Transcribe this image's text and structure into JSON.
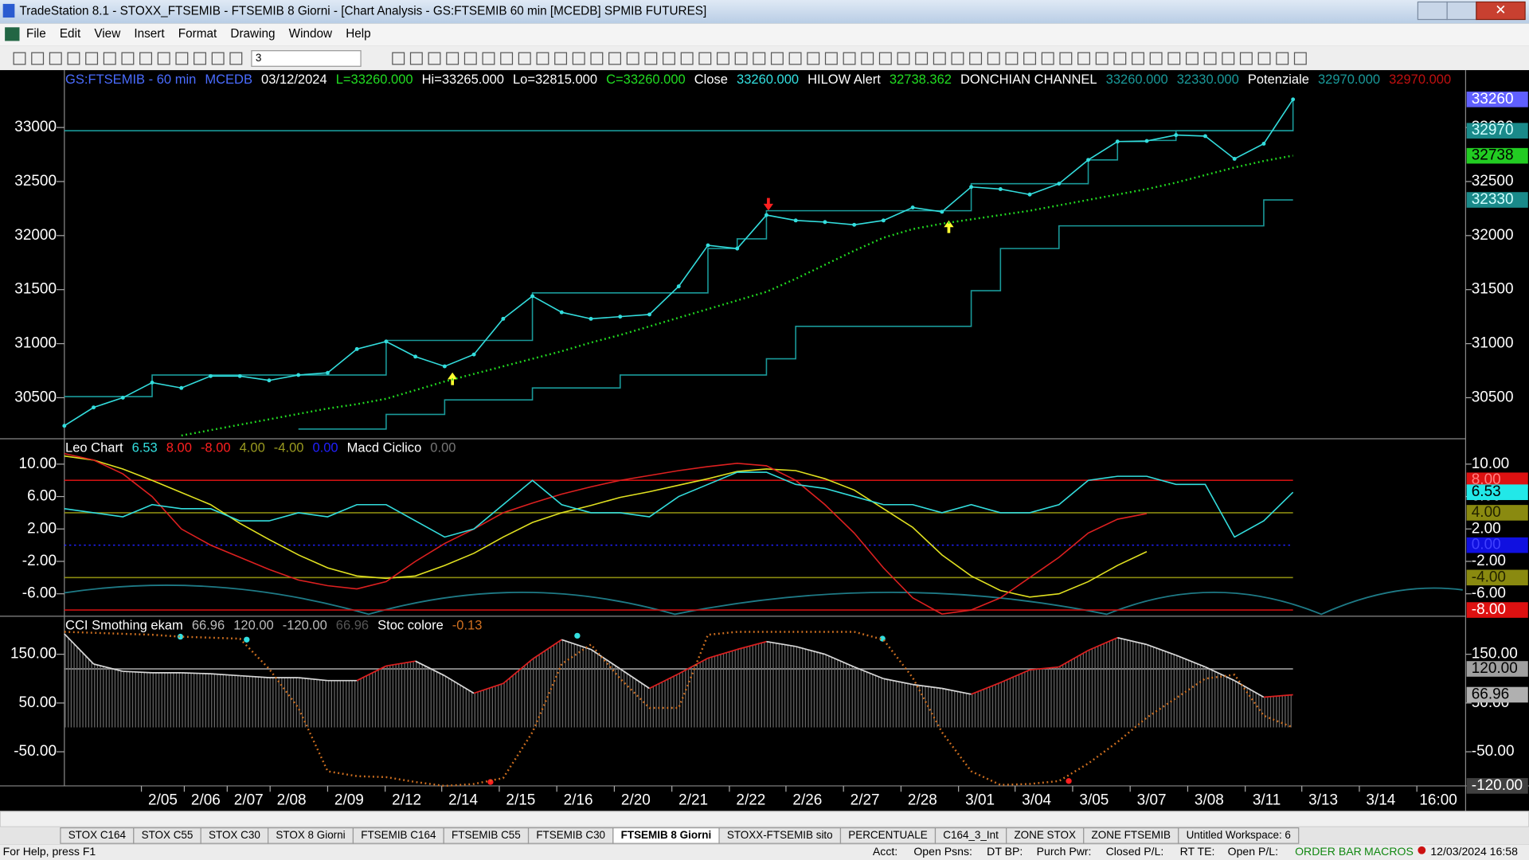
{
  "window": {
    "title": "TradeStation 8.1 - STOXX_FTSEMIB - FTSEMIB  8 Giorni - [Chart Analysis - GS:FTSEMIB  60 min  [MCEDB] SPMIB FUTURES]",
    "menu": [
      "File",
      "Edit",
      "View",
      "Insert",
      "Format",
      "Drawing",
      "Window",
      "Help"
    ],
    "toolbar_combo": "3"
  },
  "chart_data": [
    {
      "type": "line",
      "header": [
        {
          "text": "GS:FTSEMIB - 60 min",
          "color": "#4a6cff"
        },
        {
          "text": "MCEDB",
          "color": "#4a6cff"
        },
        {
          "text": "03/12/2024",
          "color": "#ffffff"
        },
        {
          "text": "L=33260.000",
          "color": "#22dd22"
        },
        {
          "text": "Hi=33265.000",
          "color": "#ffffff"
        },
        {
          "text": "Lo=32815.000",
          "color": "#ffffff"
        },
        {
          "text": "C=33260.000",
          "color": "#22dd22"
        },
        {
          "text": "Close",
          "color": "#ffffff"
        },
        {
          "text": "33260.000",
          "color": "#33e0e0"
        },
        {
          "text": "HILOW Alert",
          "color": "#ffffff"
        },
        {
          "text": "32738.362",
          "color": "#22dd22"
        },
        {
          "text": "DONCHIAN CHANNEL",
          "color": "#ffffff"
        },
        {
          "text": "33260.000",
          "color": "#1a9a9a"
        },
        {
          "text": "32330.000",
          "color": "#1a9a9a"
        },
        {
          "text": "Potenziale",
          "color": "#ffffff"
        },
        {
          "text": "32970.000",
          "color": "#1a9a9a"
        },
        {
          "text": "32970.000",
          "color": "#c01010"
        }
      ],
      "ylim": [
        30120,
        33530
      ],
      "yticks": [
        33000,
        32500,
        32000,
        31500,
        31000,
        30500
      ],
      "levels": [
        {
          "value": 32970,
          "color": "#1a9a9a",
          "box": "#1a8a8a",
          "text_color": "#d0ffff"
        }
      ],
      "value_boxes": [
        {
          "value": 33260,
          "box": "#6060ff",
          "text_color": "#ffffff"
        },
        {
          "value": 32738,
          "box": "#22cc22",
          "text_color": "#000000"
        },
        {
          "value": 32330,
          "box": "#1a8a8a",
          "text_color": "#d0ffff"
        }
      ],
      "series": [
        {
          "color": "#1a9a9a",
          "style": "step",
          "values": [
            30510,
            30510,
            30510,
            30710,
            30710,
            30710,
            30710,
            30710,
            30710,
            30710,
            30710,
            31030,
            31030,
            31030,
            31030,
            31030,
            31470,
            31470,
            31470,
            31470,
            31470,
            31470,
            31880,
            31970,
            32230,
            32230,
            32230,
            32230,
            32230,
            32230,
            32230,
            32480,
            32480,
            32480,
            32480,
            32700,
            32870,
            32880,
            32970,
            32970,
            32970,
            32970,
            33260
          ]
        },
        {
          "color": "#1a9a9a",
          "style": "step",
          "values": [
            null,
            null,
            null,
            null,
            null,
            null,
            null,
            null,
            30210,
            30210,
            30210,
            30345,
            30345,
            30480,
            30480,
            30480,
            30590,
            30590,
            30590,
            30710,
            30710,
            30710,
            30710,
            30710,
            30860,
            31160,
            31160,
            31160,
            31160,
            31160,
            31160,
            31490,
            31880,
            31880,
            32090,
            32090,
            32090,
            32090,
            32090,
            32090,
            32090,
            32330,
            32330
          ]
        },
        {
          "color": "#22dd22",
          "style": "dotted",
          "values": [
            null,
            null,
            null,
            null,
            30150,
            30200,
            30250,
            30300,
            30350,
            30400,
            30440,
            30490,
            30570,
            30650,
            30720,
            30790,
            30860,
            30930,
            31010,
            31080,
            31160,
            31240,
            31320,
            31400,
            31480,
            31600,
            31730,
            31860,
            31980,
            32060,
            32110,
            32150,
            32190,
            32230,
            32280,
            32330,
            32380,
            32430,
            32490,
            32560,
            32630,
            32690,
            32740
          ]
        },
        {
          "color": "#33dddd",
          "style": "dots",
          "values": [
            30240,
            30410,
            30500,
            30640,
            30590,
            30700,
            30700,
            30660,
            30710,
            30730,
            30950,
            31020,
            30880,
            30790,
            30900,
            31230,
            31440,
            31290,
            31230,
            31250,
            31270,
            31530,
            31910,
            31880,
            32190,
            32140,
            32125,
            32100,
            32140,
            32260,
            32220,
            32450,
            32430,
            32380,
            32480,
            32700,
            32870,
            32875,
            32930,
            32920,
            32710,
            32850,
            33260
          ]
        }
      ]
    },
    {
      "type": "line",
      "header": [
        {
          "text": "Leo Chart",
          "color": "#ffffff"
        },
        {
          "text": "6.53",
          "color": "#33e0e0"
        },
        {
          "text": "8.00",
          "color": "#ff2020"
        },
        {
          "text": "-8.00",
          "color": "#ff2020"
        },
        {
          "text": "4.00",
          "color": "#9a9a20"
        },
        {
          "text": "-4.00",
          "color": "#9a9a20"
        },
        {
          "text": "0.00",
          "color": "#2020ff"
        },
        {
          "text": "Macd Ciclico",
          "color": "#ffffff"
        },
        {
          "text": "0.00",
          "color": "#777777"
        }
      ],
      "ylim": [
        -8.77,
        13.13
      ],
      "yticks": [
        {
          "value": 10,
          "label": "10.00"
        },
        {
          "value": 6,
          "label": "6.00"
        },
        {
          "value": 2,
          "label": "2.00"
        },
        {
          "value": -2,
          "label": "-2.00"
        },
        {
          "value": -6,
          "label": "-6.00"
        }
      ],
      "levels": [
        {
          "value": 8,
          "label": "8.00",
          "color": "#cc1111",
          "box": "#dd1111",
          "text_color": "#ff8080"
        },
        {
          "value": 4,
          "label": "4.00",
          "color": "#8a8a10",
          "box": "#8a8a10",
          "text_color": "#222200"
        },
        {
          "value": 0,
          "label": "0.00",
          "color": "#2020ff",
          "box": "#1010e0",
          "text_color": "#4040ff",
          "dotted": true
        },
        {
          "value": -4,
          "label": "-4.00",
          "color": "#8a8a10",
          "box": "#8a8a10",
          "text_color": "#222200"
        },
        {
          "value": -8,
          "label": "-8.00",
          "color": "#cc1111",
          "box": "#dd1111",
          "text_color": "#ffffff"
        }
      ],
      "value_boxes": [
        {
          "value": 6.53,
          "box": "#22e8e8",
          "text_color": "#000000"
        }
      ],
      "series": [
        {
          "color": "#e0e020",
          "style": "line",
          "values": [
            11,
            10.5,
            9.4,
            8,
            6.5,
            5,
            2.7,
            0.7,
            -1.2,
            -2.8,
            -3.8,
            -4.1,
            -3.8,
            -2.5,
            -1,
            1,
            2.8,
            4,
            4.9,
            5.9,
            6.6,
            7.4,
            8.2,
            9.1,
            9.4,
            9.2,
            8.2,
            6.8,
            4.5,
            2.2,
            -1.2,
            -3.8,
            -5.6,
            -6.4,
            -6,
            -4.5,
            -2.5,
            -0.8,
            null,
            null,
            null,
            null,
            null
          ]
        },
        {
          "color": "#dd2020",
          "style": "line",
          "values": [
            11.3,
            10.5,
            8.8,
            6,
            2,
            0,
            -1.5,
            -3,
            -4.3,
            -5,
            -5.4,
            -4.5,
            -2,
            0.2,
            2,
            4,
            5.2,
            6.3,
            7.2,
            8,
            8.6,
            9.2,
            9.7,
            10.1,
            9.8,
            8,
            5,
            1.5,
            -2.8,
            -6.5,
            -8.5,
            -8,
            -6.5,
            -4,
            -1.5,
            1.5,
            3.2,
            3.9,
            null,
            null,
            null,
            null,
            null
          ]
        },
        {
          "color": "#33dddd",
          "style": "line",
          "values": [
            4.5,
            4,
            3.5,
            5,
            4.5,
            4.5,
            3,
            3,
            4,
            3.5,
            5,
            5,
            3,
            1,
            2,
            5,
            8,
            5,
            4,
            4,
            3.5,
            6,
            7.5,
            9,
            9,
            7.5,
            7,
            6,
            5,
            5,
            4,
            5,
            4,
            4,
            5,
            8,
            8.5,
            8.5,
            7.5,
            7.5,
            1,
            3,
            6.53
          ]
        }
      ]
    },
    {
      "type": "line",
      "header": [
        {
          "text": "CCI Smothing ekam",
          "color": "#ffffff"
        },
        {
          "text": "66.96",
          "color": "#bbbbbb"
        },
        {
          "text": "120.00",
          "color": "#bbbbbb"
        },
        {
          "text": "-120.00",
          "color": "#bbbbbb"
        },
        {
          "text": "66.96",
          "color": "#555555"
        },
        {
          "text": "Stoc colore",
          "color": "#ffffff"
        },
        {
          "text": "-0.13",
          "color": "#d07020"
        }
      ],
      "ylim": [
        -120,
        228
      ],
      "yticks": [
        {
          "value": 150,
          "label": "150.00"
        },
        {
          "value": 50,
          "label": "50.00"
        },
        {
          "value": -50,
          "label": "-50.00"
        }
      ],
      "levels": [
        {
          "value": 120,
          "label": "120.00",
          "color": "#aaaaaa",
          "box": "#a0a0a0",
          "text_color": "#000000"
        }
      ],
      "value_boxes": [
        {
          "value": 66.96,
          "label": "66.96",
          "box": "#b0b0b0",
          "text_color": "#000000"
        },
        {
          "value": -120,
          "label": "-120.00",
          "box": "#404040",
          "text_color": "#ffffff"
        }
      ],
      "series": [
        {
          "color": "#dd2020",
          "down_color": "#d8d8d8",
          "style": "line",
          "hatch": true,
          "values": [
            192,
            130,
            115,
            112,
            112,
            110,
            106,
            102,
            102,
            96,
            96,
            126,
            136,
            106,
            70,
            90,
            140,
            180,
            160,
            120,
            80,
            110,
            142,
            160,
            176,
            166,
            150,
            124,
            100,
            88,
            80,
            68,
            92,
            118,
            124,
            158,
            184,
            170,
            148,
            124,
            96,
            62,
            66.96
          ]
        },
        {
          "color": "#d07020",
          "style": "dotted",
          "values": [
            196,
            194,
            192,
            190,
            186,
            184,
            182,
            120,
            40,
            -90,
            -100,
            -102,
            -112,
            -120,
            -116,
            -104,
            -10,
            130,
            170,
            100,
            40,
            40,
            190,
            196,
            196,
            196,
            196,
            196,
            180,
            102,
            -10,
            -90,
            -118,
            -116,
            -110,
            -74,
            -30,
            20,
            60,
            100,
            108,
            24,
            -0.13
          ]
        }
      ]
    }
  ],
  "date_axis": [
    "2/05",
    "2/06",
    "2/07",
    "2/08",
    "2/09",
    "2/12",
    "2/14",
    "2/15",
    "2/16",
    "2/20",
    "2/21",
    "2/22",
    "2/26",
    "2/27",
    "2/28",
    "3/01",
    "3/04",
    "3/05",
    "3/07",
    "3/08",
    "3/11",
    "3/13",
    "3/14",
    "16:00"
  ],
  "tabs": [
    "STOX C164",
    "STOX C55",
    "STOX  C30",
    "STOX  8 Giorni",
    "FTSEMIB C164",
    "FTSEMIB C55",
    "FTSEMIB C30",
    "FTSEMIB  8 Giorni",
    "STOXX-FTSEMIB sito",
    "PERCENTUALE",
    "C164_3_Int",
    "ZONE STOX",
    "ZONE FTSEMIB",
    "Untitled Workspace:  6"
  ],
  "active_tab": 7,
  "status": {
    "help": "For Help, press F1",
    "acct": "Acct:",
    "open_psns": "Open Psns:",
    "dt_bp": "DT BP:",
    "purch_pwr": "Purch Pwr:",
    "closed_pl": "Closed P/L:",
    "rt_te": "RT TE:",
    "open_pl": "Open P/L:",
    "order_bar": "ORDER BAR",
    "macros": "MACROS",
    "datetime": "12/03/2024 16:58"
  }
}
